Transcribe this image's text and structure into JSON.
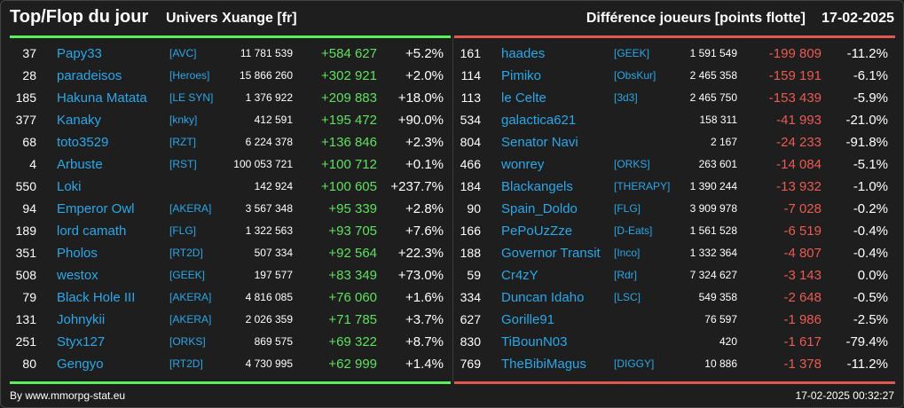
{
  "header": {
    "title": "Top/Flop du jour",
    "universe": "Univers Xuange [fr]",
    "subtitle": "Différence joueurs [points flotte]",
    "date": "17-02-2025"
  },
  "colors": {
    "gain": "#5ee05e",
    "loss": "#ea5a52",
    "link": "#2aa7e8"
  },
  "top": [
    {
      "rank": "37",
      "name": "Papy33",
      "tag": "[AVC]",
      "points": "11 781 539",
      "diff": "+584 627",
      "pct": "+5.2%"
    },
    {
      "rank": "28",
      "name": "paradeisos",
      "tag": "[Heroes]",
      "points": "15 866 260",
      "diff": "+302 921",
      "pct": "+2.0%"
    },
    {
      "rank": "185",
      "name": "Hakuna Matata",
      "tag": "[LE SYN]",
      "points": "1 376 922",
      "diff": "+209 883",
      "pct": "+18.0%"
    },
    {
      "rank": "377",
      "name": "Kanaky",
      "tag": "[knky]",
      "points": "412 591",
      "diff": "+195 472",
      "pct": "+90.0%"
    },
    {
      "rank": "68",
      "name": "toto3529",
      "tag": "[RZT]",
      "points": "6 224 378",
      "diff": "+136 846",
      "pct": "+2.3%"
    },
    {
      "rank": "4",
      "name": "Arbuste",
      "tag": "[RST]",
      "points": "100 053 721",
      "diff": "+100 712",
      "pct": "+0.1%"
    },
    {
      "rank": "550",
      "name": "Loki",
      "tag": "",
      "points": "142 924",
      "diff": "+100 605",
      "pct": "+237.7%"
    },
    {
      "rank": "94",
      "name": "Emperor Owl",
      "tag": "[AKERA]",
      "points": "3 567 348",
      "diff": "+95 339",
      "pct": "+2.8%"
    },
    {
      "rank": "189",
      "name": "lord camath",
      "tag": "[FLG]",
      "points": "1 322 563",
      "diff": "+93 705",
      "pct": "+7.6%"
    },
    {
      "rank": "351",
      "name": "Pholos",
      "tag": "[RT2D]",
      "points": "507 334",
      "diff": "+92 564",
      "pct": "+22.3%"
    },
    {
      "rank": "508",
      "name": "westox",
      "tag": "[GEEK]",
      "points": "197 577",
      "diff": "+83 349",
      "pct": "+73.0%"
    },
    {
      "rank": "79",
      "name": "Black Hole III",
      "tag": "[AKERA]",
      "points": "4 816 085",
      "diff": "+76 060",
      "pct": "+1.6%"
    },
    {
      "rank": "131",
      "name": "Johnykii",
      "tag": "[AKERA]",
      "points": "2 026 359",
      "diff": "+71 785",
      "pct": "+3.7%"
    },
    {
      "rank": "251",
      "name": "Styx127",
      "tag": "[ORKS]",
      "points": "869 575",
      "diff": "+69 322",
      "pct": "+8.7%"
    },
    {
      "rank": "80",
      "name": "Gengyo",
      "tag": "[RT2D]",
      "points": "4 730 995",
      "diff": "+62 999",
      "pct": "+1.4%"
    }
  ],
  "flop": [
    {
      "rank": "161",
      "name": "haades",
      "tag": "[GEEK]",
      "points": "1 591 549",
      "diff": "-199 809",
      "pct": "-11.2%"
    },
    {
      "rank": "114",
      "name": "Pimiko",
      "tag": "[ObsKur]",
      "points": "2 465 358",
      "diff": "-159 191",
      "pct": "-6.1%"
    },
    {
      "rank": "113",
      "name": "le Celte",
      "tag": "[3d3]",
      "points": "2 465 750",
      "diff": "-153 439",
      "pct": "-5.9%"
    },
    {
      "rank": "534",
      "name": "galactica621",
      "tag": "",
      "points": "158 311",
      "diff": "-41 993",
      "pct": "-21.0%"
    },
    {
      "rank": "804",
      "name": "Senator Navi",
      "tag": "",
      "points": "2 167",
      "diff": "-24 233",
      "pct": "-91.8%"
    },
    {
      "rank": "466",
      "name": "wonrey",
      "tag": "[ORKS]",
      "points": "263 601",
      "diff": "-14 084",
      "pct": "-5.1%"
    },
    {
      "rank": "184",
      "name": "Blackangels",
      "tag": "[THERAPY]",
      "points": "1 390 244",
      "diff": "-13 932",
      "pct": "-1.0%"
    },
    {
      "rank": "90",
      "name": "Spain_Doldo",
      "tag": "[FLG]",
      "points": "3 909 978",
      "diff": "-7 028",
      "pct": "-0.2%"
    },
    {
      "rank": "166",
      "name": "PePoUzZze",
      "tag": "[D-Eats]",
      "points": "1 561 528",
      "diff": "-6 519",
      "pct": "-0.4%"
    },
    {
      "rank": "188",
      "name": "Governor Transit",
      "tag": "[Inco]",
      "points": "1 332 364",
      "diff": "-4 807",
      "pct": "-0.4%"
    },
    {
      "rank": "59",
      "name": "Cr4zY",
      "tag": "[Rdr]",
      "points": "7 324 627",
      "diff": "-3 143",
      "pct": "0.0%"
    },
    {
      "rank": "334",
      "name": "Duncan Idaho",
      "tag": "[LSC]",
      "points": "549 358",
      "diff": "-2 648",
      "pct": "-0.5%"
    },
    {
      "rank": "627",
      "name": "Gorille91",
      "tag": "",
      "points": "76 597",
      "diff": "-1 986",
      "pct": "-2.5%"
    },
    {
      "rank": "830",
      "name": "TiBounN03",
      "tag": "",
      "points": "420",
      "diff": "-1 617",
      "pct": "-79.4%"
    },
    {
      "rank": "769",
      "name": "TheBibiMagus",
      "tag": "[DIGGY]",
      "points": "10 886",
      "diff": "-1 378",
      "pct": "-11.2%"
    }
  ],
  "footer": {
    "credit": "By www.mmorpg-stat.eu",
    "timestamp": "17-02-2025 00:32:27"
  }
}
